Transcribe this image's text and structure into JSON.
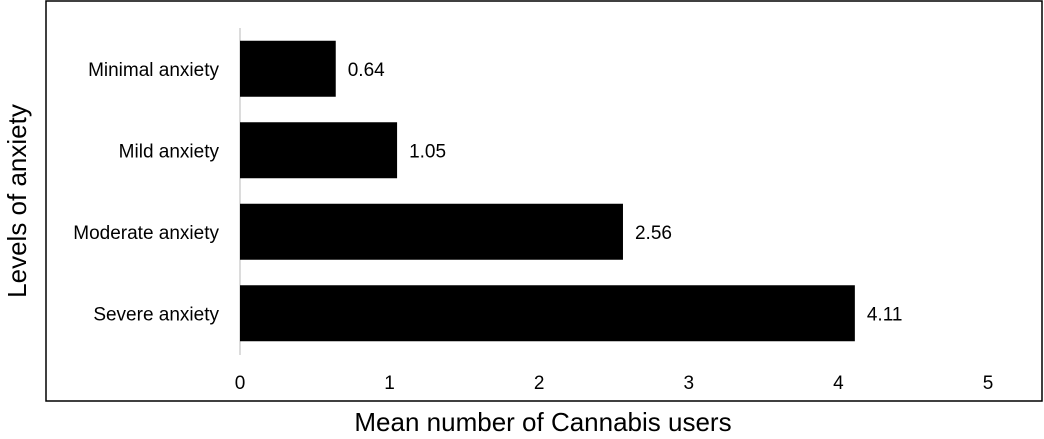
{
  "chart_data": {
    "type": "bar",
    "orientation": "horizontal",
    "categories": [
      "Minimal anxiety",
      "Mild anxiety",
      "Moderate anxiety",
      "Severe anxiety"
    ],
    "values": [
      0.64,
      1.05,
      2.56,
      4.11
    ],
    "data_labels": [
      "0.64",
      "1.05",
      "2.56",
      "4.11"
    ],
    "xticks": [
      "0",
      "1",
      "2",
      "3",
      "4",
      "5"
    ],
    "xlim": [
      0,
      5
    ],
    "xlabel": "Mean number of Cannabis users",
    "ylabel": "Levels of anxiety",
    "title": "",
    "grid": false,
    "legend": "none",
    "bar_color": "#000000"
  }
}
